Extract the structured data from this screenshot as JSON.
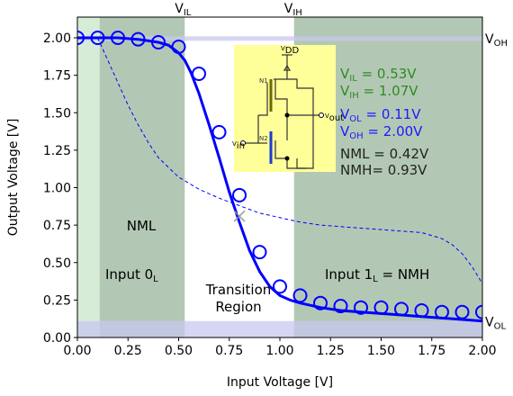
{
  "chart_data": {
    "type": "line",
    "xlabel": "Input Voltage  [V]",
    "ylabel": "Output Voltage  [V]",
    "xlim": [
      0,
      2
    ],
    "ylim": [
      0,
      2.1
    ],
    "grid": false,
    "x_ticks": [
      0,
      0.25,
      0.5,
      0.75,
      1.0,
      1.25,
      1.5,
      1.75,
      2.0
    ],
    "x_tick_labels": [
      "0.00",
      "0.25",
      "0.50",
      "0.75",
      "1.00",
      "1.25",
      "1.50",
      "1.75",
      "2.00"
    ],
    "y_ticks": [
      0,
      0.25,
      0.5,
      0.75,
      1.0,
      1.25,
      1.5,
      1.75,
      2.0
    ],
    "y_tick_labels": [
      "0.00",
      "0.25",
      "0.50",
      "0.75",
      "1.00",
      "1.25",
      "1.50",
      "1.75",
      "2.00"
    ],
    "series": [
      {
        "style": "solid",
        "color": "#0000ff",
        "x": [
          0,
          0.1,
          0.2,
          0.3,
          0.4,
          0.45,
          0.5,
          0.53,
          0.56,
          0.6,
          0.65,
          0.7,
          0.75,
          0.8,
          0.85,
          0.9,
          0.95,
          1.0,
          1.05,
          1.1,
          1.2,
          1.3,
          1.4,
          1.5,
          1.6,
          1.7,
          1.8,
          1.9,
          2.0
        ],
        "y": [
          2.0,
          2.0,
          2.0,
          1.99,
          1.97,
          1.95,
          1.9,
          1.85,
          1.77,
          1.63,
          1.42,
          1.2,
          0.97,
          0.77,
          0.58,
          0.44,
          0.34,
          0.28,
          0.25,
          0.23,
          0.2,
          0.18,
          0.17,
          0.16,
          0.15,
          0.14,
          0.13,
          0.12,
          0.11
        ]
      },
      {
        "style": "markers",
        "marker": "circle",
        "color": "#0000ff",
        "x": [
          0.0,
          0.1,
          0.2,
          0.3,
          0.4,
          0.5,
          0.6,
          0.7,
          0.8,
          0.9,
          1.0,
          1.1,
          1.2,
          1.3,
          1.4,
          1.5,
          1.6,
          1.7,
          1.8,
          1.9,
          2.0
        ],
        "y": [
          2.0,
          2.0,
          2.0,
          1.99,
          1.97,
          1.94,
          1.76,
          1.37,
          0.95,
          0.57,
          0.34,
          0.28,
          0.23,
          0.21,
          0.2,
          0.2,
          0.19,
          0.18,
          0.17,
          0.17,
          0.17
        ]
      },
      {
        "style": "dashed",
        "color": "#0000ff",
        "x": [
          0.1,
          0.15,
          0.2,
          0.25,
          0.3,
          0.35,
          0.4,
          0.5,
          0.6,
          0.7,
          0.8,
          0.9,
          1.0,
          1.1,
          1.2,
          1.3,
          1.4,
          1.5,
          1.6,
          1.7,
          1.8,
          1.85,
          1.9,
          1.95,
          2.0
        ],
        "y": [
          2.0,
          1.85,
          1.7,
          1.55,
          1.42,
          1.3,
          1.2,
          1.07,
          0.99,
          0.93,
          0.88,
          0.83,
          0.8,
          0.77,
          0.75,
          0.74,
          0.73,
          0.72,
          0.71,
          0.7,
          0.66,
          0.62,
          0.56,
          0.47,
          0.36
        ]
      }
    ],
    "crossing_marker": {
      "x": 0.8,
      "y": 0.81,
      "marker": "x",
      "color": "#999999"
    },
    "regions": [
      {
        "x0": 0,
        "x1": 0.11,
        "color": "#d7ecd7"
      },
      {
        "x0": 0.11,
        "x1": 0.53,
        "color": "#b3c8b4"
      },
      {
        "x0": 1.07,
        "x1": 2.0,
        "color": "#b3c8b4"
      }
    ],
    "bands": [
      {
        "y0": 1.98,
        "y1": 2.01,
        "color": "#c8c8f0"
      },
      {
        "y0": 0,
        "y1": 0.11,
        "color": "#c8c8f0"
      }
    ],
    "top_labels": [
      {
        "x": 0.53,
        "text": "V",
        "sub": "IL"
      },
      {
        "x": 1.07,
        "text": "V",
        "sub": "IH"
      }
    ],
    "right_labels": [
      {
        "y": 2.0,
        "text": "V",
        "sub": "OH"
      },
      {
        "y": 0.11,
        "text": "V",
        "sub": "OL"
      }
    ],
    "region_labels": {
      "nml": "NML",
      "input0": {
        "text": "Input 0",
        "sub": "L"
      },
      "input1": {
        "text": "Input 1",
        "sub": "L",
        "suffix": " = NMH"
      },
      "transition_1": "Transition",
      "transition_2": "Region"
    },
    "inset": {
      "background": "#ffff99",
      "vdd": "V",
      "vdd_sub": "DD",
      "vin": "V",
      "vin_sub": "in",
      "vout": "V",
      "vout_sub": "out",
      "n1": "N1",
      "n2": "N2"
    },
    "legend_text": [
      {
        "text": "V",
        "sub": "IL",
        "rest": "  = 0.53V",
        "color": "#2e8b22"
      },
      {
        "text": "V",
        "sub": "IH",
        "rest": " = 1.07V",
        "color": "#2e8b22"
      },
      {
        "text": "V",
        "sub": "OL",
        "rest": " = 0.11V",
        "color": "#1a1aff"
      },
      {
        "text": "V",
        "sub": "OH",
        "rest": " = 2.00V",
        "color": "#1a1aff"
      },
      {
        "text": "NML = 0.42V",
        "color": "#222222"
      },
      {
        "text": "NMH= 0.93V",
        "color": "#222222"
      }
    ]
  }
}
